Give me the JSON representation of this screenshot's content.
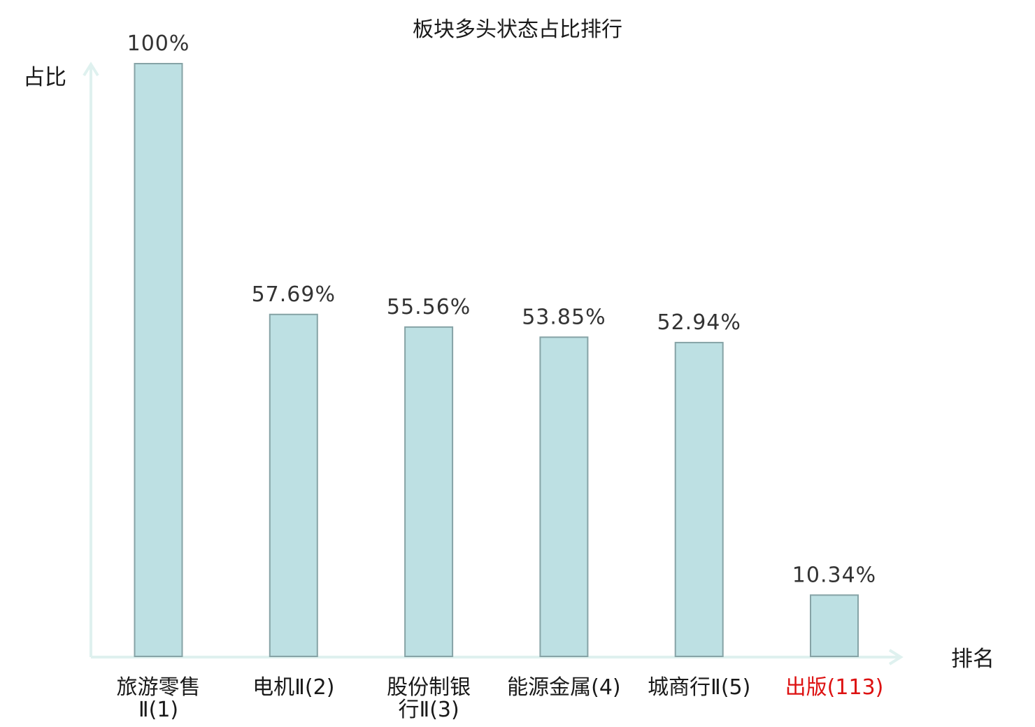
{
  "chart_data": {
    "type": "bar",
    "title": "板块多头状态占比排行",
    "ylabel": "占比",
    "xlabel": "排名",
    "ylim": [
      0,
      100
    ],
    "grid": false,
    "categories": [
      {
        "name_lines": [
          "旅游零售",
          "Ⅱ(1)"
        ],
        "highlight": false
      },
      {
        "name_lines": [
          "电机Ⅱ(2)"
        ],
        "highlight": false
      },
      {
        "name_lines": [
          "股份制银",
          "行Ⅱ(3)"
        ],
        "highlight": false
      },
      {
        "name_lines": [
          "能源金属(4)"
        ],
        "highlight": false
      },
      {
        "name_lines": [
          "城商行Ⅱ(5)"
        ],
        "highlight": false
      },
      {
        "name_lines": [
          "出版(113)"
        ],
        "highlight": true
      }
    ],
    "values": [
      100,
      57.69,
      55.56,
      53.85,
      52.94,
      10.34
    ],
    "value_labels": [
      "100%",
      "57.69%",
      "55.56%",
      "53.85%",
      "52.94%",
      "10.34%"
    ],
    "colors": {
      "bar_fill": "#bde0e3",
      "bar_stroke": "#86a3a6",
      "axis": "#dff1ef",
      "label_normal": "#1a1a1a",
      "label_highlight": "#dd1111"
    }
  }
}
